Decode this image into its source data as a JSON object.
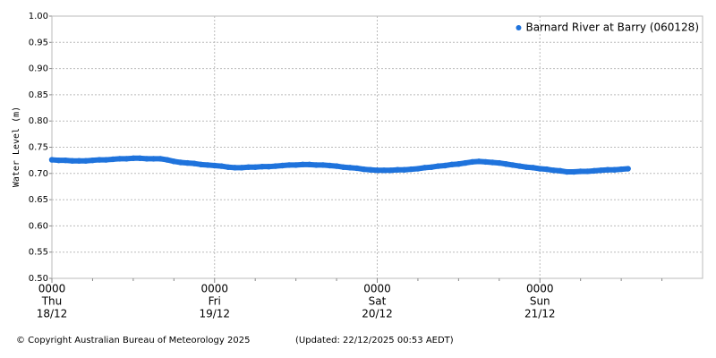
{
  "chart_data": {
    "type": "scatter",
    "ylabel": "Water Level (m)",
    "series": [
      {
        "name": "Barnard River at Barry (060128)",
        "color": "#1f73dc",
        "x": [
          0,
          1,
          2,
          3,
          4,
          5,
          6,
          7,
          8,
          9,
          10,
          11,
          12,
          13,
          14,
          15,
          16,
          17,
          18,
          19,
          20,
          21,
          22,
          23,
          24,
          25,
          26,
          27,
          28,
          29,
          30,
          31,
          32,
          33,
          34,
          35,
          36,
          37,
          38,
          39,
          40,
          41,
          42,
          43,
          44,
          45,
          46,
          47,
          48,
          49,
          50,
          51,
          52,
          53,
          54,
          55,
          56,
          57,
          58,
          59,
          60,
          61,
          62,
          63,
          64,
          65,
          66,
          67,
          68,
          69,
          70,
          71,
          72,
          73,
          74,
          75,
          76,
          77,
          78,
          79,
          80,
          81,
          82,
          83,
          84,
          85
        ],
        "values": [
          0.726,
          0.725,
          0.725,
          0.724,
          0.724,
          0.724,
          0.725,
          0.726,
          0.726,
          0.727,
          0.728,
          0.728,
          0.729,
          0.729,
          0.728,
          0.728,
          0.728,
          0.726,
          0.723,
          0.721,
          0.72,
          0.719,
          0.717,
          0.716,
          0.715,
          0.714,
          0.712,
          0.711,
          0.711,
          0.712,
          0.712,
          0.713,
          0.713,
          0.714,
          0.715,
          0.716,
          0.716,
          0.717,
          0.717,
          0.716,
          0.716,
          0.715,
          0.714,
          0.712,
          0.711,
          0.71,
          0.708,
          0.707,
          0.706,
          0.706,
          0.706,
          0.707,
          0.707,
          0.708,
          0.709,
          0.711,
          0.712,
          0.714,
          0.715,
          0.717,
          0.718,
          0.72,
          0.722,
          0.723,
          0.722,
          0.721,
          0.72,
          0.718,
          0.716,
          0.714,
          0.712,
          0.711,
          0.709,
          0.708,
          0.706,
          0.705,
          0.703,
          0.703,
          0.704,
          0.704,
          0.705,
          0.706,
          0.707,
          0.707,
          0.708,
          0.709
        ]
      }
    ],
    "xlim": [
      0,
      96
    ],
    "xticks": [
      {
        "value": 0,
        "label": [
          "0000",
          "Thu",
          "18/12"
        ]
      },
      {
        "value": 24,
        "label": [
          "0000",
          "Fri",
          "19/12"
        ]
      },
      {
        "value": 48,
        "label": [
          "0000",
          "Sat",
          "20/12"
        ]
      },
      {
        "value": 72,
        "label": [
          "0000",
          "Sun",
          "21/12"
        ]
      }
    ],
    "xminorticks": [
      6,
      12,
      18,
      30,
      36,
      42,
      54,
      60,
      66,
      78,
      84,
      90
    ],
    "ylim": [
      0.5,
      1
    ],
    "yticks": [
      {
        "value": 1,
        "label": "1.00"
      },
      0.95,
      {
        "value": 0.9,
        "label": "0.90"
      },
      0.85,
      {
        "value": 0.8,
        "label": "0.80"
      },
      0.75,
      {
        "value": 0.7,
        "label": "0.70"
      },
      0.65,
      {
        "value": 0.6,
        "label": "0.60"
      },
      0.55,
      {
        "value": 0.5,
        "label": "0.50"
      }
    ],
    "grid": true,
    "legend": "upper right",
    "footer": [
      "© Copyright Australian Bureau of Meteorology 2025",
      "(Updated: 22/12/2025 00:53 AEDT)"
    ]
  }
}
